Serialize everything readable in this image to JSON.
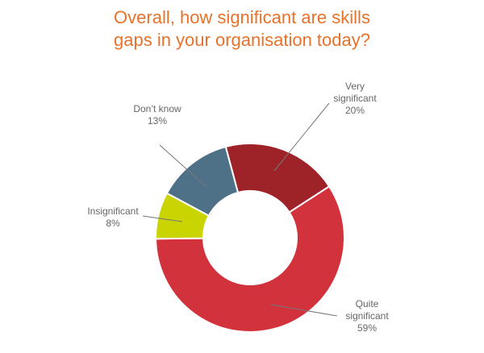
{
  "chart_data": {
    "type": "donut",
    "title": "Overall, how significant are skills gaps in your organisation today?",
    "categories": [
      "Very significant",
      "Quite significant",
      "Insignificant",
      "Don’t know"
    ],
    "values": [
      20,
      59,
      8,
      13
    ],
    "value_labels": [
      "20%",
      "59%",
      "8%",
      "13%"
    ],
    "colors": [
      "#9e2329",
      "#d2323b",
      "#c9d400",
      "#4f7187"
    ]
  }
}
